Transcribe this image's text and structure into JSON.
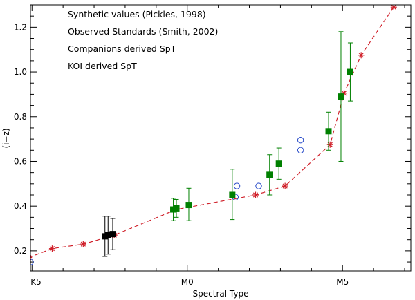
{
  "chart_data": {
    "type": "scatter",
    "xlabel": "Spectral Type",
    "ylabel": "(i−z)",
    "xlim": [
      -0.05,
      12.2
    ],
    "ylim": [
      0.11,
      1.3
    ],
    "x_ticks": [
      {
        "value": 0,
        "label": "K5"
      },
      {
        "value": 5,
        "label": "M0"
      },
      {
        "value": 10,
        "label": "M5"
      }
    ],
    "x_minor_step": 1,
    "y_ticks": [
      0.2,
      0.4,
      0.6,
      0.8,
      1.0,
      1.2
    ],
    "y_minor_step": 0.05,
    "legend": {
      "position": "top-left",
      "entries": [
        {
          "label": "Synthetic values (Pickles, 1998)",
          "color": "#d0202a"
        },
        {
          "label": "Observed Standards (Smith, 2002)",
          "color": "#2448c8"
        },
        {
          "label": "Companions derived SpT",
          "color": "#008000"
        },
        {
          "label": "KOI derived SpT",
          "color": "#000000"
        }
      ]
    },
    "series": [
      {
        "name": "Synthetic values (Pickles, 1998)",
        "marker": "asterisk",
        "line": "dashed",
        "color": "#d0202a",
        "x": [
          -0.1,
          0.65,
          1.65,
          2.65,
          4.65,
          7.2,
          8.15,
          9.6,
          10.05,
          10.6,
          11.65
        ],
        "y": [
          0.17,
          0.21,
          0.23,
          0.27,
          0.385,
          0.45,
          0.49,
          0.675,
          0.905,
          1.075,
          1.29
        ]
      },
      {
        "name": "Observed Standards (Smith, 2002)",
        "marker": "open-circle",
        "color": "#2448c8",
        "x": [
          -0.05,
          6.55,
          6.6,
          7.3,
          8.65,
          8.65
        ],
        "y": [
          0.15,
          0.44,
          0.49,
          0.49,
          0.65,
          0.695
        ]
      },
      {
        "name": "Companions derived SpT",
        "marker": "filled-square",
        "color": "#008000",
        "x": [
          4.55,
          4.65,
          5.05,
          6.45,
          7.65,
          7.95,
          9.55,
          9.95,
          10.25
        ],
        "y": [
          0.385,
          0.39,
          0.405,
          0.45,
          0.54,
          0.59,
          0.735,
          0.89,
          1.0
        ],
        "y_err_low": [
          0.05,
          0.04,
          0.07,
          0.11,
          0.09,
          0.07,
          0.085,
          0.29,
          0.13
        ],
        "y_err_high": [
          0.05,
          0.04,
          0.075,
          0.115,
          0.09,
          0.07,
          0.085,
          0.29,
          0.13
        ]
      },
      {
        "name": "KOI derived SpT",
        "marker": "filled-square",
        "color": "#000000",
        "x": [
          2.35,
          2.45,
          2.6
        ],
        "y": [
          0.265,
          0.27,
          0.275
        ],
        "y_err_low": [
          0.09,
          0.085,
          0.07
        ],
        "y_err_high": [
          0.09,
          0.085,
          0.07
        ]
      }
    ]
  }
}
